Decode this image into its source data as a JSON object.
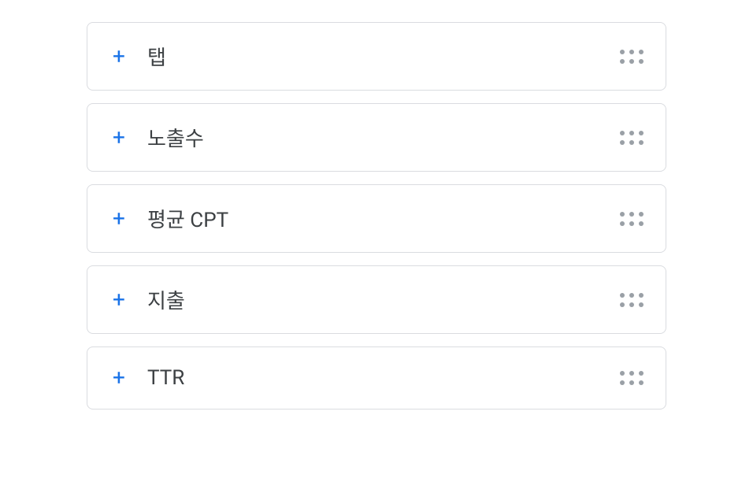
{
  "metrics": {
    "items": [
      {
        "id": "tab",
        "label": "탭"
      },
      {
        "id": "impressions",
        "label": "노출수"
      },
      {
        "id": "avg-cpt",
        "label": "평균 CPT"
      },
      {
        "id": "spend",
        "label": "지출"
      },
      {
        "id": "ttr",
        "label": "TTR"
      }
    ]
  },
  "colors": {
    "accent": "#1a73e8",
    "border": "#dadce0",
    "text": "#3c4043",
    "dragHandle": "#9aa0a6"
  }
}
